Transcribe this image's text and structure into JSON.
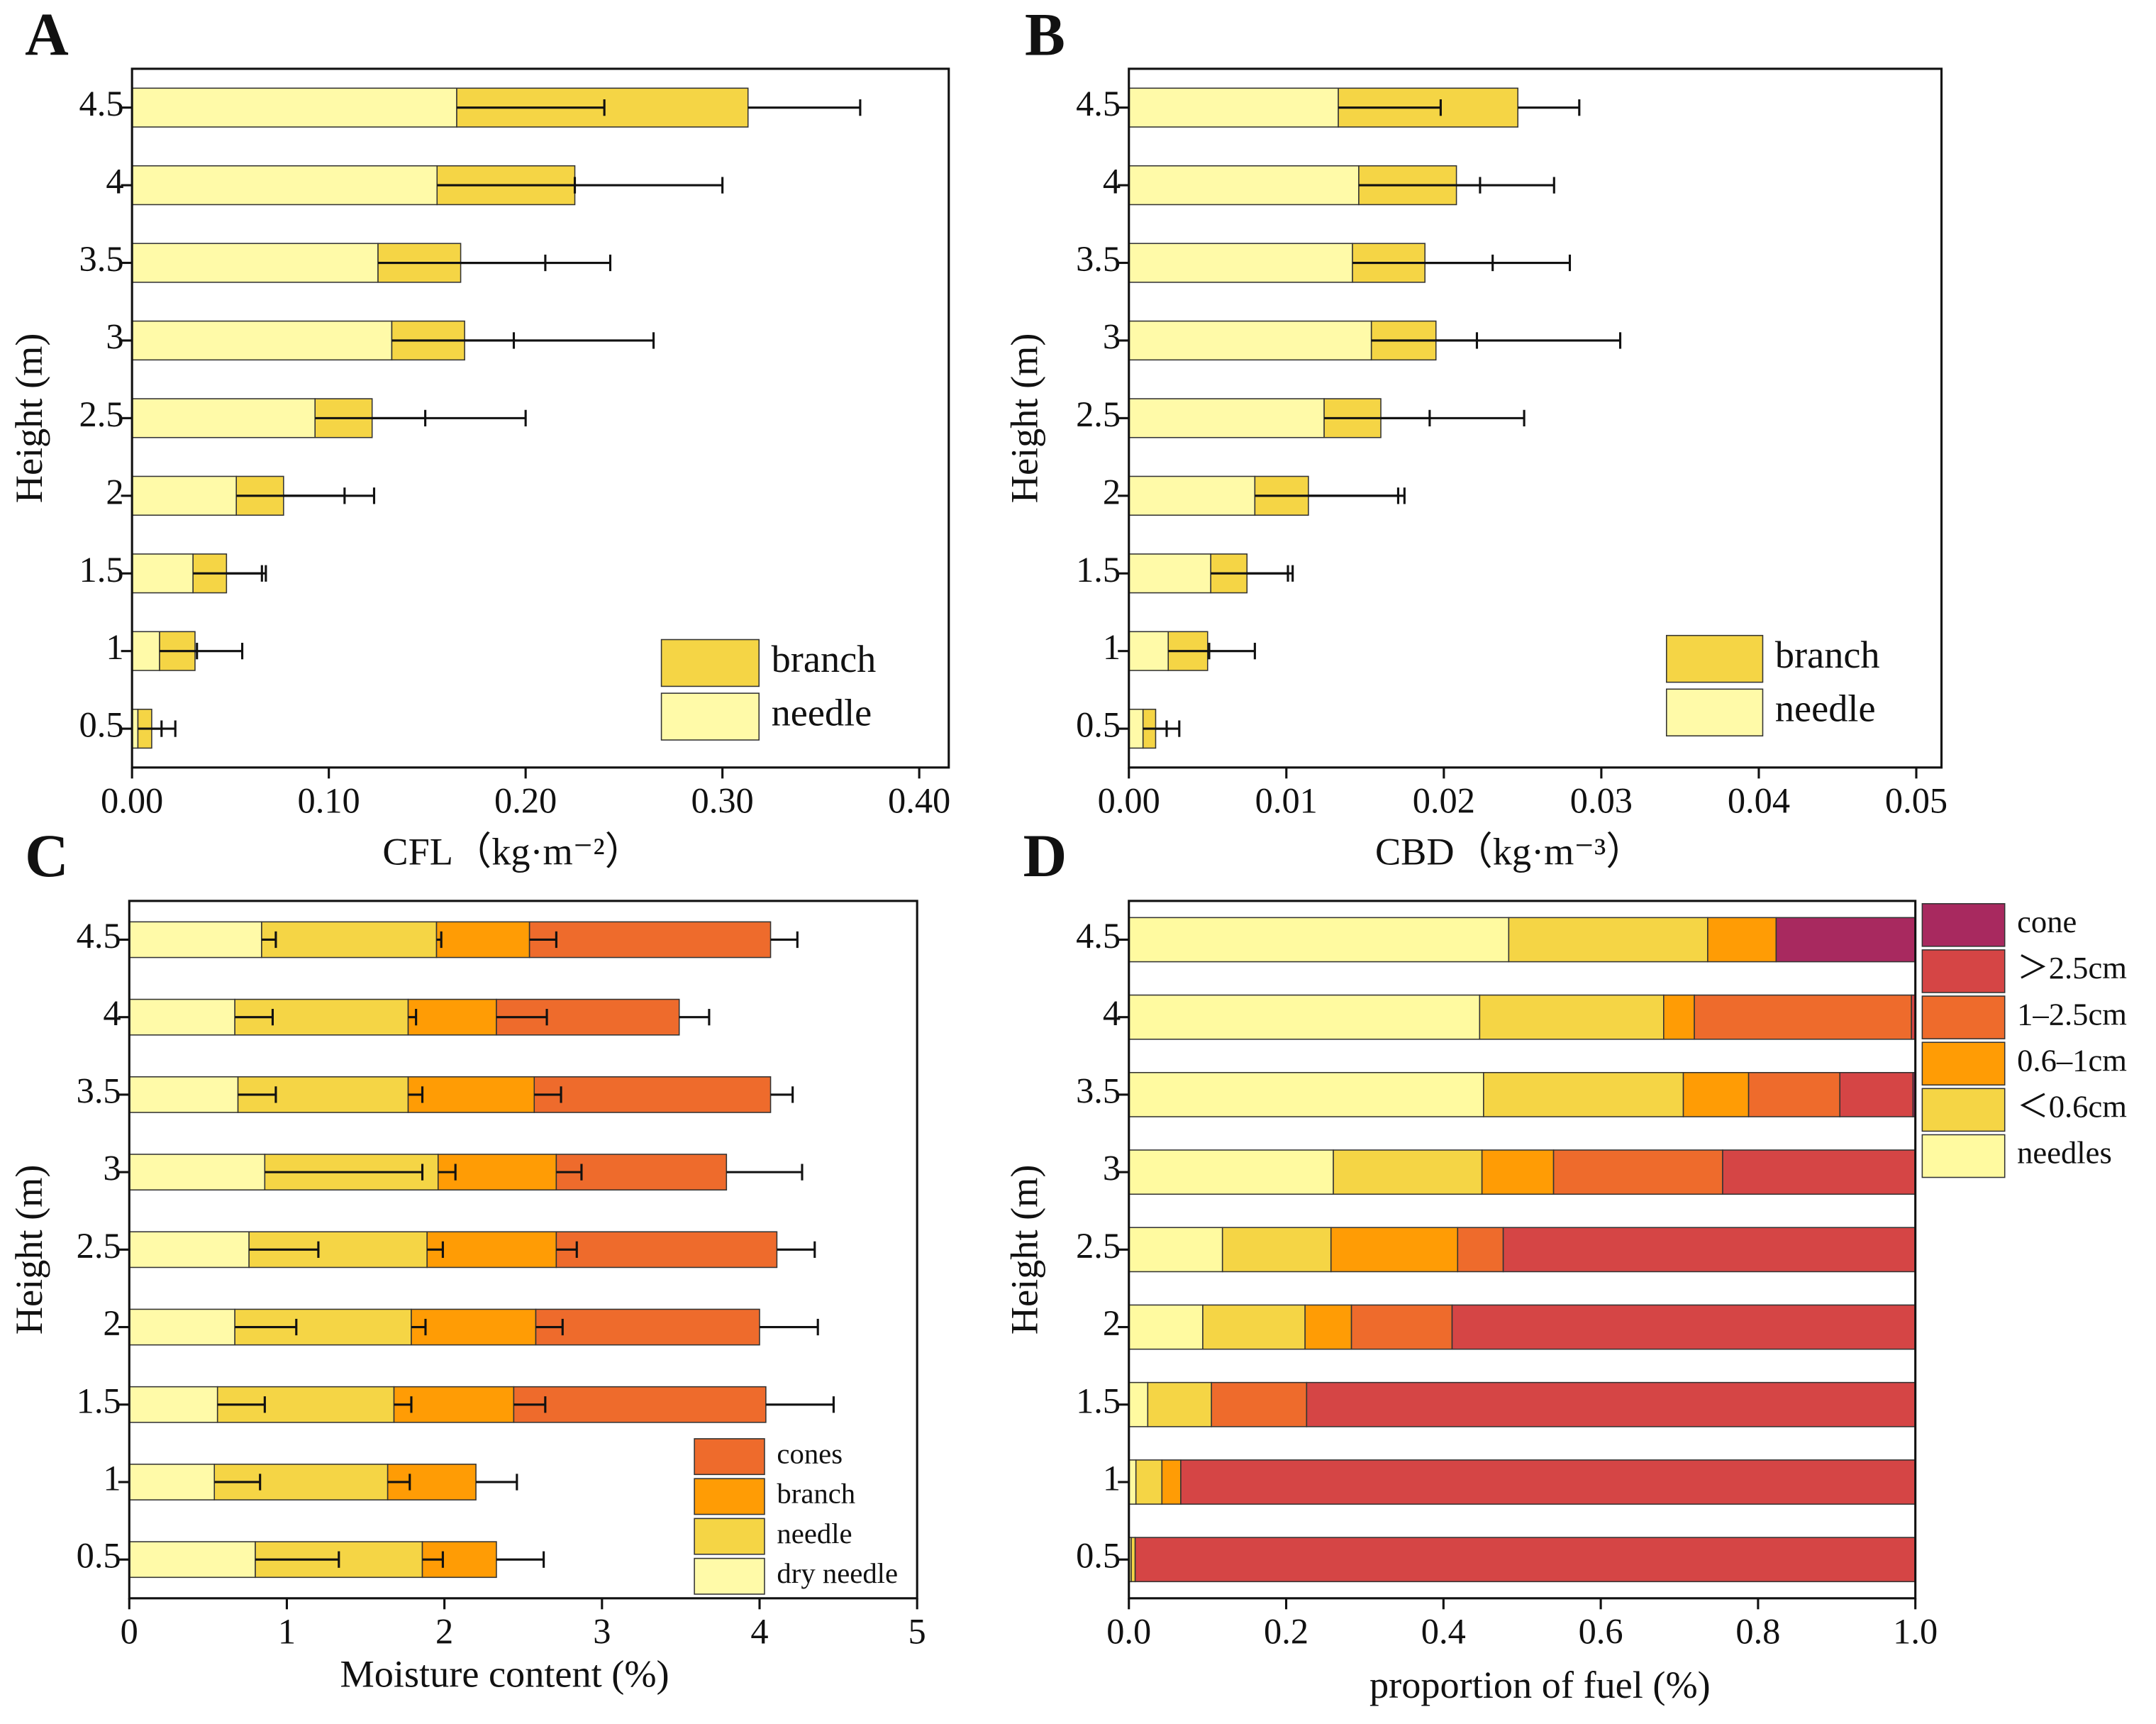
{
  "chart_data": [
    {
      "panel": "A",
      "type": "bar",
      "orientation": "horizontal",
      "stacked": true,
      "xlabel": "CFL（kg·m⁻²）",
      "ylabel": "Height (m)",
      "categories": [
        "0.5",
        "1",
        "1.5",
        "2",
        "2.5",
        "3",
        "3.5",
        "4",
        "4.5"
      ],
      "series": [
        {
          "name": "needle",
          "color": "#fffaa8",
          "values": [
            0.003,
            0.014,
            0.031,
            0.053,
            0.093,
            0.132,
            0.125,
            0.155,
            0.165
          ],
          "errors": [
            0.012,
            0.019,
            0.035,
            0.055,
            0.056,
            0.062,
            0.085,
            0.07,
            0.075
          ]
        },
        {
          "name": "branch",
          "color": "#f5d545",
          "values": [
            0.007,
            0.018,
            0.017,
            0.024,
            0.029,
            0.037,
            0.042,
            0.07,
            0.148
          ],
          "errors": [
            0.012,
            0.024,
            0.02,
            0.046,
            0.078,
            0.096,
            0.076,
            0.075,
            0.057
          ]
        }
      ],
      "xlim": [
        0,
        0.415
      ],
      "xticks": [
        {
          "value": 0,
          "label": "0.00"
        },
        {
          "value": 0.1,
          "label": "0.10"
        },
        {
          "value": 0.2,
          "label": "0.20"
        },
        {
          "value": 0.3,
          "label": "0.30"
        },
        {
          "value": 0.4,
          "label": "0.40"
        }
      ],
      "legend": "lower right"
    },
    {
      "panel": "B",
      "type": "bar",
      "orientation": "horizontal",
      "stacked": true,
      "xlabel": "CBD（kg·m⁻³）",
      "ylabel": "Height (m)",
      "categories": [
        "0.5",
        "1",
        "1.5",
        "2",
        "2.5",
        "3",
        "3.5",
        "4",
        "4.5"
      ],
      "series": [
        {
          "name": "needle",
          "color": "#fffaa8",
          "values": [
            0.0009,
            0.0025,
            0.0052,
            0.008,
            0.0124,
            0.0154,
            0.0142,
            0.0146,
            0.0133
          ],
          "errors": [
            0.0015,
            0.0026,
            0.0049,
            0.0091,
            0.0067,
            0.0067,
            0.0089,
            0.0077,
            0.0065
          ]
        },
        {
          "name": "branch",
          "color": "#f5d545",
          "values": [
            0.0008,
            0.0025,
            0.0023,
            0.0034,
            0.0036,
            0.0041,
            0.0046,
            0.0062,
            0.0114
          ],
          "errors": [
            0.0015,
            0.003,
            0.0029,
            0.0061,
            0.0091,
            0.0117,
            0.0092,
            0.0062,
            0.0039
          ]
        }
      ],
      "xlim": [
        0,
        0.0516
      ],
      "xticks": [
        {
          "value": 0,
          "label": "0.00"
        },
        0.01,
        0.02,
        0.03,
        0.04,
        0.05
      ],
      "legend": "lower right"
    },
    {
      "panel": "C",
      "type": "bar",
      "orientation": "horizontal",
      "stacked": true,
      "xlabel": "Moisture content (%)",
      "ylabel": "Height (m)",
      "categories": [
        "0.5",
        "1",
        "1.5",
        "2",
        "2.5",
        "3",
        "3.5",
        "4",
        "4.5"
      ],
      "series": [
        {
          "name": "dry needle",
          "color": "#fffaa8",
          "values": [
            0.8,
            0.54,
            0.56,
            0.67,
            0.76,
            0.86,
            0.69,
            0.67,
            0.84
          ],
          "errors": [
            0.53,
            0.29,
            0.3,
            0.39,
            0.44,
            1.0,
            0.24,
            0.24,
            0.09
          ]
        },
        {
          "name": "needle",
          "color": "#f5d545",
          "values": [
            1.06,
            1.1,
            1.12,
            1.12,
            1.13,
            1.1,
            1.08,
            1.1,
            1.11
          ],
          "errors": [
            0.13,
            0.14,
            0.11,
            0.09,
            0.1,
            0.11,
            0.09,
            0.05,
            0.03
          ]
        },
        {
          "name": "branch",
          "color": "#ff9c05",
          "values": [
            0.47,
            0.56,
            0.76,
            0.79,
            0.82,
            0.75,
            0.8,
            0.56,
            0.59
          ],
          "errors": [
            0.3,
            0.26,
            0.2,
            0.17,
            0.13,
            0.16,
            0.17,
            0.32,
            0.17
          ]
        },
        {
          "name": "cones",
          "color": "#ee6b2c",
          "values": [
            null,
            null,
            1.6,
            1.42,
            1.4,
            1.08,
            1.5,
            1.16,
            1.53
          ],
          "errors": [
            null,
            null,
            0.43,
            0.37,
            0.24,
            0.48,
            0.14,
            0.19,
            0.17
          ]
        }
      ],
      "xlim": [
        0,
        5
      ],
      "xticks": [
        0,
        1,
        2,
        3,
        4,
        5
      ],
      "legend": "lower right"
    },
    {
      "panel": "D",
      "type": "bar",
      "orientation": "horizontal",
      "stacked": true,
      "xlabel": "proportion of fuel (%)",
      "ylabel": "Height (m)",
      "categories": [
        "0.5",
        "1",
        "1.5",
        "2",
        "2.5",
        "3",
        "3.5",
        "4",
        "4.5"
      ],
      "series": [
        {
          "name": "needles",
          "color": "#fffaa0",
          "values": [
            0.003,
            0.009,
            0.024,
            0.094,
            0.119,
            0.26,
            0.451,
            0.446,
            0.483
          ]
        },
        {
          "name": "＜0.6cm",
          "color": "#f5d545",
          "values": [
            0.005,
            0.033,
            0.081,
            0.13,
            0.138,
            0.189,
            0.254,
            0.234,
            0.253
          ]
        },
        {
          "name": "0.6–1cm",
          "color": "#ff9c05",
          "values": [
            0,
            0.024,
            0,
            0.059,
            0.161,
            0.091,
            0.083,
            0.039,
            0.087
          ]
        },
        {
          "name": "1–2.5cm",
          "color": "#ee6b2c",
          "values": [
            0,
            0,
            0.121,
            0.128,
            0.058,
            0.215,
            0.116,
            0.276,
            0
          ]
        },
        {
          "name": "＞2.5cm",
          "color": "#d54545",
          "values": [
            0.992,
            0.934,
            0.774,
            0.589,
            0.524,
            0.245,
            0.093,
            0.005,
            0
          ]
        },
        {
          "name": "cone",
          "color": "#a8295f",
          "values": [
            0,
            0,
            0,
            0,
            0,
            0,
            0.003,
            0,
            0.177
          ]
        }
      ],
      "xlim": [
        0,
        1
      ],
      "xticks": [
        {
          "value": 0,
          "label": "0.0"
        },
        0.2,
        0.4,
        0.6,
        0.8,
        {
          "value": 1,
          "label": "1.0"
        }
      ],
      "legend": "outside right"
    }
  ]
}
